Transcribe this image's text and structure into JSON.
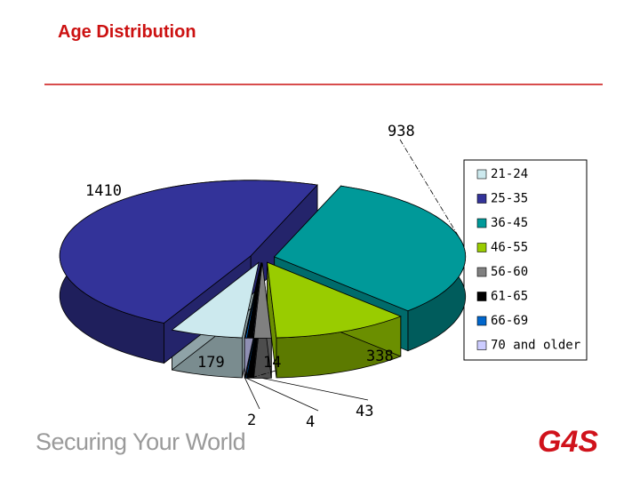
{
  "chart_data": {
    "type": "pie3d",
    "title": "Age Distribution",
    "categories": [
      "21-24",
      "25-35",
      "36-45",
      "46-55",
      "56-60",
      "61-65",
      "66-69",
      "70 and older"
    ],
    "values": [
      179,
      1410,
      938,
      338,
      43,
      14,
      4,
      2
    ],
    "colors": [
      "#cce9ee",
      "#333399",
      "#009999",
      "#99cc00",
      "#808080",
      "#000000",
      "#0066cc",
      "#ccccff"
    ],
    "legend": "right"
  },
  "footer": {
    "tagline": "Securing Your World",
    "logo": "G4S"
  }
}
